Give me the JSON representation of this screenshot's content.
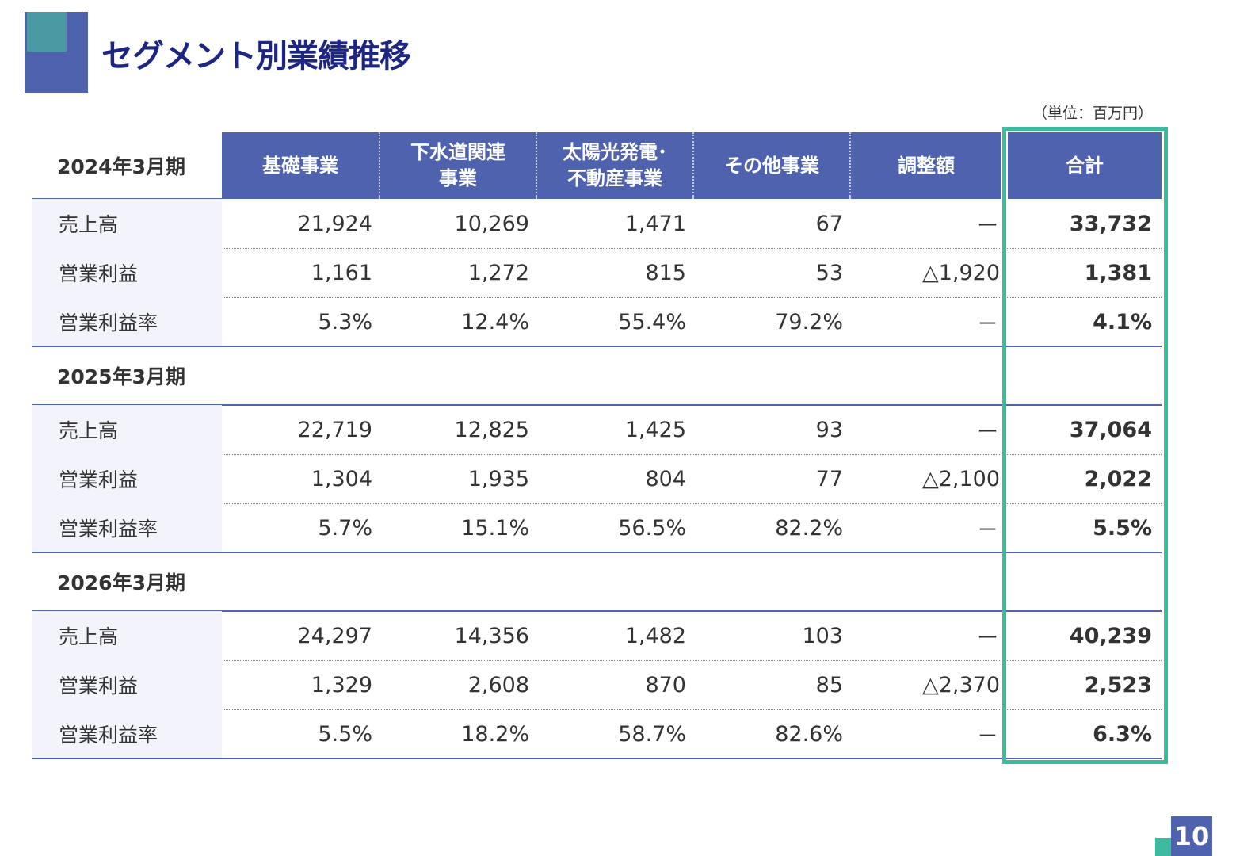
{
  "title": "セグメント別業績推移",
  "unit_note": "（単位：百万円）",
  "columns": [
    {
      "label": "基礎事業"
    },
    {
      "label": "下水道関連\n事業"
    },
    {
      "label": "太陽光発電･\n不動産事業"
    },
    {
      "label": "その他事業"
    },
    {
      "label": "調整額"
    },
    {
      "label": "合計"
    }
  ],
  "periods": [
    {
      "label": "2024年3月期",
      "rows": [
        {
          "label": "売上高",
          "values": [
            "21,924",
            "10,269",
            "1,471",
            "67",
            "ー",
            "33,732"
          ]
        },
        {
          "label": "営業利益",
          "values": [
            "1,161",
            "1,272",
            "815",
            "53",
            "△1,920",
            "1,381"
          ]
        },
        {
          "label": "営業利益率",
          "values": [
            "5.3%",
            "12.4%",
            "55.4%",
            "79.2%",
            "－",
            "4.1%"
          ]
        }
      ]
    },
    {
      "label": "2025年3月期",
      "rows": [
        {
          "label": "売上高",
          "values": [
            "22,719",
            "12,825",
            "1,425",
            "93",
            "ー",
            "37,064"
          ]
        },
        {
          "label": "営業利益",
          "values": [
            "1,304",
            "1,935",
            "804",
            "77",
            "△2,100",
            "2,022"
          ]
        },
        {
          "label": "営業利益率",
          "values": [
            "5.7%",
            "15.1%",
            "56.5%",
            "82.2%",
            "－",
            "5.5%"
          ]
        }
      ]
    },
    {
      "label": "2026年3月期",
      "rows": [
        {
          "label": "売上高",
          "values": [
            "24,297",
            "14,356",
            "1,482",
            "103",
            "ー",
            "40,239"
          ]
        },
        {
          "label": "営業利益",
          "values": [
            "1,329",
            "2,608",
            "870",
            "85",
            "△2,370",
            "2,523"
          ]
        },
        {
          "label": "営業利益率",
          "values": [
            "5.5%",
            "18.2%",
            "58.7%",
            "82.6%",
            "－",
            "6.3%"
          ]
        }
      ]
    }
  ],
  "page_number": "10",
  "colors": {
    "header_bg": "#4f62ad",
    "highlight_frame": "#3dbb9f",
    "title_text": "#1d2682",
    "label_bg": "#f2f3fb"
  }
}
